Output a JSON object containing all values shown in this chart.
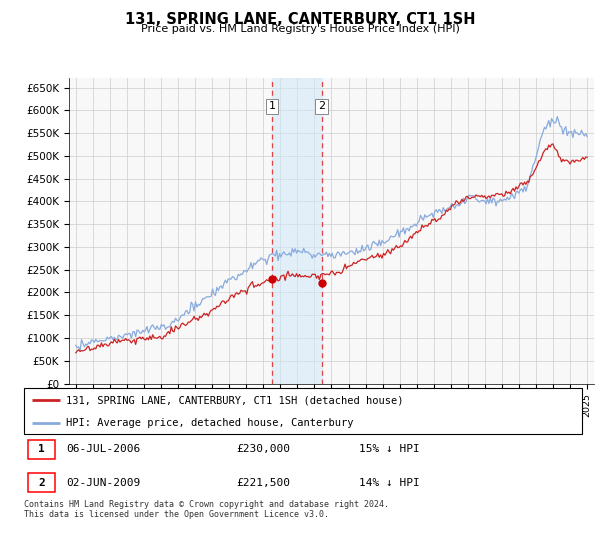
{
  "title": "131, SPRING LANE, CANTERBURY, CT1 1SH",
  "subtitle": "Price paid vs. HM Land Registry's House Price Index (HPI)",
  "ylabel_ticks": [
    "£0",
    "£50K",
    "£100K",
    "£150K",
    "£200K",
    "£250K",
    "£300K",
    "£350K",
    "£400K",
    "£450K",
    "£500K",
    "£550K",
    "£600K",
    "£650K"
  ],
  "ylim": [
    0,
    670000
  ],
  "xlim_start": 1994.6,
  "xlim_end": 2025.4,
  "sale1_year": 2006.5,
  "sale1_price": 230000,
  "sale2_year": 2009.42,
  "sale2_price": 221500,
  "red_line_color": "#cc2222",
  "blue_line_color": "#88aadd",
  "marker_color": "#cc0000",
  "dashed_color": "#dd4444",
  "shade_color": "#d0e8f8",
  "legend_red_label": "131, SPRING LANE, CANTERBURY, CT1 1SH (detached house)",
  "legend_blue_label": "HPI: Average price, detached house, Canterbury",
  "table_row1": [
    "1",
    "06-JUL-2006",
    "£230,000",
    "15% ↓ HPI"
  ],
  "table_row2": [
    "2",
    "02-JUN-2009",
    "£221,500",
    "14% ↓ HPI"
  ],
  "footnote": "Contains HM Land Registry data © Crown copyright and database right 2024.\nThis data is licensed under the Open Government Licence v3.0.",
  "background_color": "#ffffff",
  "grid_color": "#cccccc"
}
